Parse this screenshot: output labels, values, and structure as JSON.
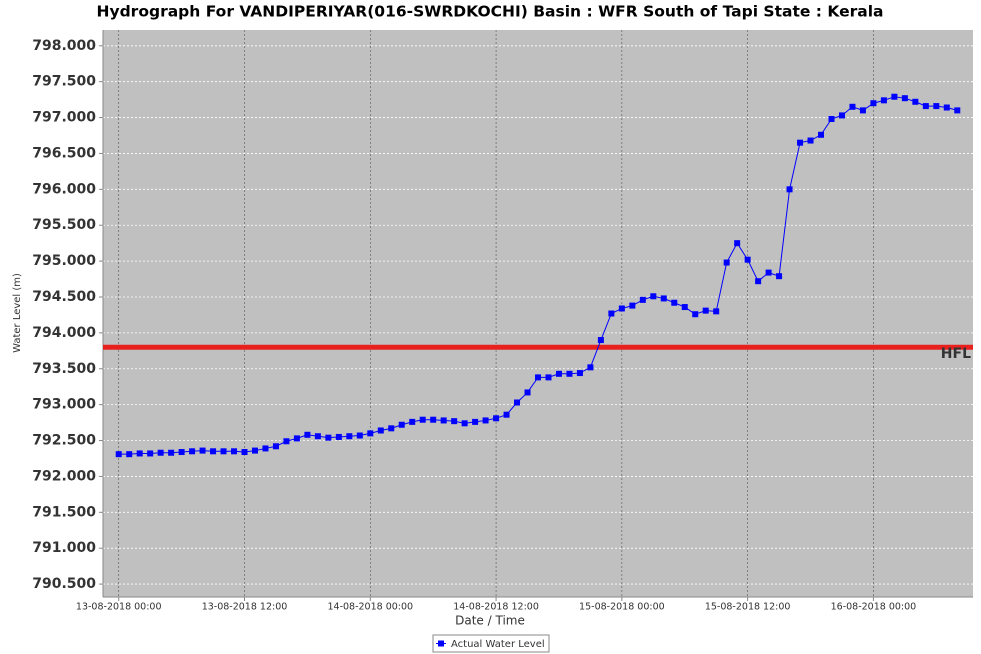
{
  "chart_data": {
    "type": "line",
    "title": "Hydrograph For VANDIPERIYAR(016-SWRDKOCHI) Basin : WFR South of Tapi State : Kerala",
    "x_label": "Date / Time",
    "y_label": "Water Level (m)",
    "x": [
      "13-08-2018 00:00",
      "13-08-2018 01:00",
      "13-08-2018 02:00",
      "13-08-2018 03:00",
      "13-08-2018 04:00",
      "13-08-2018 05:00",
      "13-08-2018 06:00",
      "13-08-2018 07:00",
      "13-08-2018 08:00",
      "13-08-2018 09:00",
      "13-08-2018 10:00",
      "13-08-2018 11:00",
      "13-08-2018 12:00",
      "13-08-2018 13:00",
      "13-08-2018 14:00",
      "13-08-2018 15:00",
      "13-08-2018 16:00",
      "13-08-2018 17:00",
      "13-08-2018 18:00",
      "13-08-2018 19:00",
      "13-08-2018 20:00",
      "13-08-2018 21:00",
      "13-08-2018 22:00",
      "13-08-2018 23:00",
      "14-08-2018 00:00",
      "14-08-2018 01:00",
      "14-08-2018 02:00",
      "14-08-2018 03:00",
      "14-08-2018 04:00",
      "14-08-2018 05:00",
      "14-08-2018 06:00",
      "14-08-2018 07:00",
      "14-08-2018 08:00",
      "14-08-2018 09:00",
      "14-08-2018 10:00",
      "14-08-2018 11:00",
      "14-08-2018 12:00",
      "14-08-2018 13:00",
      "14-08-2018 14:00",
      "14-08-2018 15:00",
      "14-08-2018 16:00",
      "14-08-2018 17:00",
      "14-08-2018 18:00",
      "14-08-2018 19:00",
      "14-08-2018 20:00",
      "14-08-2018 21:00",
      "14-08-2018 22:00",
      "14-08-2018 23:00",
      "15-08-2018 00:00",
      "15-08-2018 01:00",
      "15-08-2018 02:00",
      "15-08-2018 03:00",
      "15-08-2018 04:00",
      "15-08-2018 05:00",
      "15-08-2018 06:00",
      "15-08-2018 07:00",
      "15-08-2018 08:00",
      "15-08-2018 09:00",
      "15-08-2018 10:00",
      "15-08-2018 11:00",
      "15-08-2018 12:00",
      "15-08-2018 13:00",
      "15-08-2018 14:00",
      "15-08-2018 15:00",
      "15-08-2018 16:00",
      "15-08-2018 17:00",
      "15-08-2018 18:00",
      "15-08-2018 19:00",
      "15-08-2018 20:00",
      "15-08-2018 21:00",
      "15-08-2018 22:00",
      "15-08-2018 23:00",
      "16-08-2018 00:00",
      "16-08-2018 01:00",
      "16-08-2018 02:00",
      "16-08-2018 03:00",
      "16-08-2018 04:00",
      "16-08-2018 05:00",
      "16-08-2018 06:00",
      "16-08-2018 07:00",
      "16-08-2018 08:00"
    ],
    "series": [
      {
        "name": "Actual Water Level",
        "color": "#0000ff",
        "values": [
          792.31,
          792.31,
          792.32,
          792.32,
          792.33,
          792.33,
          792.34,
          792.35,
          792.36,
          792.35,
          792.35,
          792.35,
          792.34,
          792.36,
          792.39,
          792.42,
          792.49,
          792.53,
          792.58,
          792.56,
          792.54,
          792.55,
          792.56,
          792.57,
          792.6,
          792.64,
          792.67,
          792.72,
          792.76,
          792.79,
          792.79,
          792.78,
          792.77,
          792.74,
          792.76,
          792.78,
          792.81,
          792.86,
          793.03,
          793.17,
          793.38,
          793.38,
          793.43,
          793.43,
          793.44,
          793.52,
          793.9,
          794.27,
          794.34,
          794.38,
          794.46,
          794.51,
          794.48,
          794.42,
          794.36,
          794.26,
          794.31,
          794.3,
          794.98,
          795.25,
          795.02,
          794.72,
          794.84,
          794.79,
          796.0,
          796.65,
          796.68,
          796.76,
          796.98,
          797.03,
          797.15,
          797.1,
          797.2,
          797.24,
          797.29,
          797.27,
          797.22,
          797.16,
          797.16,
          797.14,
          797.1
        ]
      }
    ],
    "reference_line": {
      "label": "HFL",
      "value": 793.8,
      "color": "#e8201e"
    },
    "xlim": [
      "12-08-2018 22:30",
      "16-08-2018 09:30"
    ],
    "xticks": [
      "13-08-2018 00:00",
      "13-08-2018 12:00",
      "14-08-2018 00:00",
      "14-08-2018 12:00",
      "15-08-2018 00:00",
      "15-08-2018 12:00",
      "16-08-2018 00:00"
    ],
    "ylim": [
      790.32,
      798.22
    ],
    "yticks": [
      {
        "value": 790.5,
        "label": "790.500"
      },
      {
        "value": 791,
        "label": "791.000"
      },
      {
        "value": 791.5,
        "label": "791.500"
      },
      {
        "value": 792,
        "label": "792.000"
      },
      {
        "value": 792.5,
        "label": "792.500"
      },
      {
        "value": 793,
        "label": "793.000"
      },
      {
        "value": 793.5,
        "label": "793.500"
      },
      {
        "value": 794,
        "label": "794.000"
      },
      {
        "value": 794.5,
        "label": "794.500"
      },
      {
        "value": 795,
        "label": "795.000"
      },
      {
        "value": 795.5,
        "label": "795.500"
      },
      {
        "value": 796,
        "label": "796.000"
      },
      {
        "value": 796.5,
        "label": "796.500"
      },
      {
        "value": 797,
        "label": "797.000"
      },
      {
        "value": 797.5,
        "label": "797.500"
      },
      {
        "value": 798,
        "label": "798.000"
      }
    ],
    "grid": true
  }
}
